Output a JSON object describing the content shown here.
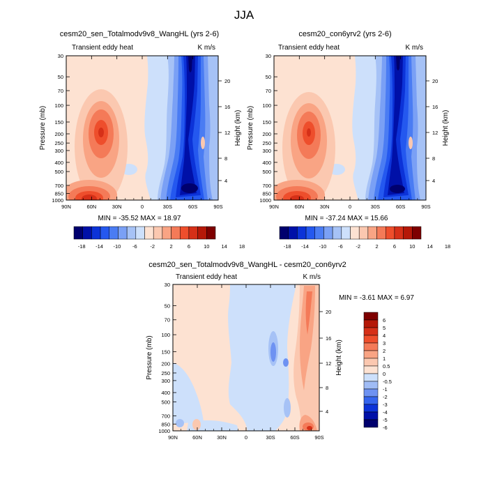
{
  "figure": {
    "title": "JJA"
  },
  "chart_data": [
    {
      "type": "heatmap",
      "title": "cesm20_sen_Totalmodv9v8_WangHL (yrs 2-6)",
      "left_label": "Transient eddy heat",
      "right_label": "K m/s",
      "xlabel": "",
      "ylabel": "Pressure (mb)",
      "ylabel_right": "Height (km)",
      "x_ticks": [
        "90N",
        "60N",
        "30N",
        "0",
        "30S",
        "60S",
        "90S"
      ],
      "y_ticks": [
        "30",
        "50",
        "70",
        "100",
        "150",
        "200",
        "250",
        "300",
        "400",
        "500",
        "700",
        "850",
        "1000"
      ],
      "height_ticks": [
        "20",
        "16",
        "12",
        "8",
        "4"
      ],
      "stats": "MIN = -35.52  MAX =  18.97",
      "min": -35.52,
      "max": 18.97,
      "colorbar_labels": [
        "-18",
        "-14",
        "-10",
        "-6",
        "-2",
        "2",
        "6",
        "10",
        "14",
        "18"
      ]
    },
    {
      "type": "heatmap",
      "title": "cesm20_con6yrv2 (yrs 2-6)",
      "left_label": "Transient eddy heat",
      "right_label": "K m/s",
      "xlabel": "",
      "ylabel": "Pressure (mb)",
      "ylabel_right": "Height (km)",
      "x_ticks": [
        "90N",
        "60N",
        "30N",
        "0",
        "30S",
        "60S",
        "90S"
      ],
      "y_ticks": [
        "30",
        "50",
        "70",
        "100",
        "150",
        "200",
        "250",
        "300",
        "400",
        "500",
        "700",
        "850",
        "1000"
      ],
      "height_ticks": [
        "20",
        "16",
        "12",
        "8",
        "4"
      ],
      "stats": "MIN = -37.24  MAX =  15.66",
      "min": -37.24,
      "max": 15.66,
      "colorbar_labels": [
        "-18",
        "-14",
        "-10",
        "-6",
        "-2",
        "2",
        "6",
        "10",
        "14",
        "18"
      ]
    },
    {
      "type": "heatmap",
      "title": "cesm20_sen_Totalmodv9v8_WangHL - cesm20_con6yrv2",
      "left_label": "Transient eddy heat",
      "right_label": "K m/s",
      "xlabel": "",
      "ylabel": "Pressure (mb)",
      "ylabel_right": "Height (km)",
      "x_ticks": [
        "90N",
        "60N",
        "30N",
        "0",
        "30S",
        "60S",
        "90S"
      ],
      "y_ticks": [
        "30",
        "50",
        "70",
        "100",
        "150",
        "200",
        "250",
        "300",
        "400",
        "500",
        "700",
        "850",
        "1000"
      ],
      "height_ticks": [
        "20",
        "16",
        "12",
        "8",
        "4"
      ],
      "stats": "MIN =  -3.61  MAX =   6.97",
      "min": -3.61,
      "max": 6.97,
      "colorbar_labels": [
        "6",
        "5",
        "4",
        "3",
        "2",
        "1",
        "0.5",
        "0",
        "-0.5",
        "-1",
        "-2",
        "-3",
        "-4",
        "-5",
        "-6"
      ]
    }
  ],
  "colors": {
    "main_scale": [
      "#00006e",
      "#0010a8",
      "#0c33d8",
      "#2458ef",
      "#4a7cf3",
      "#7aa0f5",
      "#a6c2f6",
      "#cde0fb",
      "#fde2d2",
      "#fbc8b0",
      "#f9a484",
      "#f47a58",
      "#ee4e2c",
      "#d63018",
      "#b51808",
      "#7e0000"
    ],
    "diff_scale": [
      "#00006e",
      "#0010a8",
      "#0c33d8",
      "#3565ee",
      "#6e92f2",
      "#a0bcf5",
      "#cde0fb",
      "#fde2d2",
      "#fbc8b0",
      "#f9a484",
      "#f47a58",
      "#ee4e2c",
      "#d63018",
      "#b51808",
      "#7e0000"
    ]
  }
}
